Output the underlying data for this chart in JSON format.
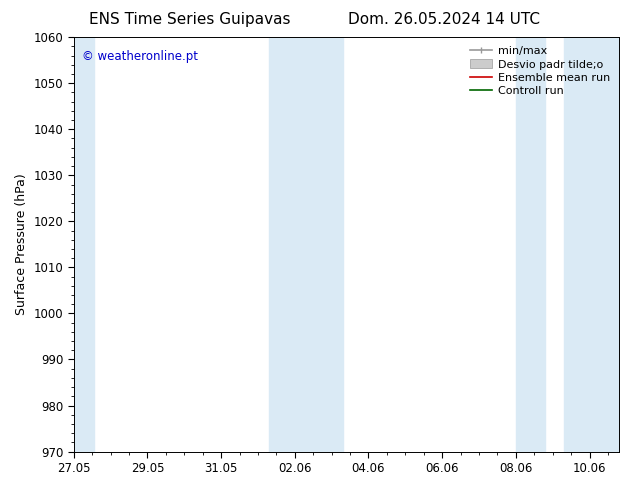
{
  "title_left": "ENS Time Series Guipavas",
  "title_right": "Dom. 26.05.2024 14 UTC",
  "ylabel": "Surface Pressure (hPa)",
  "ylim": [
    970,
    1060
  ],
  "yticks": [
    970,
    980,
    990,
    1000,
    1010,
    1020,
    1030,
    1040,
    1050,
    1060
  ],
  "xtick_labels": [
    "27.05",
    "29.05",
    "31.05",
    "02.06",
    "04.06",
    "06.06",
    "08.06",
    "10.06"
  ],
  "watermark": "© weatheronline.pt",
  "watermark_color": "#0000cc",
  "shade_color": "#daeaf5",
  "background_color": "#ffffff",
  "title_fontsize": 11,
  "axis_fontsize": 9,
  "tick_fontsize": 8.5,
  "legend_fontsize": 8
}
